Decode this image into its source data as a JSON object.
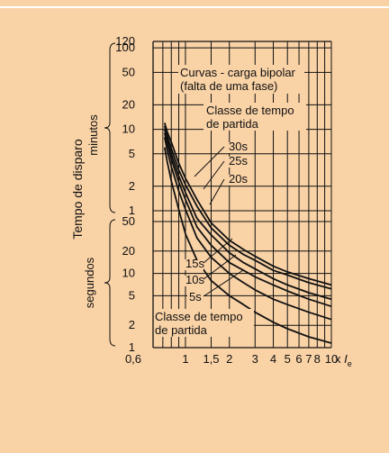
{
  "chart_data": {
    "type": "line",
    "background": "#f9d2a6",
    "line_color": "#111111",
    "grid": true,
    "x_scale": "log",
    "y_scale": "log",
    "xlim": [
      0.6,
      10
    ],
    "x_ticks": [
      0.6,
      1,
      1.5,
      2,
      3,
      4,
      5,
      6,
      7,
      8,
      10
    ],
    "x_tick_labels": [
      "0,6",
      "1",
      "1,5",
      "2",
      "3",
      "4",
      "5",
      "6",
      "7",
      "8",
      "10"
    ],
    "x_unit_prefix": "x",
    "x_unit_main": "I",
    "x_unit_sub": "e",
    "ylabel": "Tempo de disparo",
    "y_units": {
      "minutes": {
        "label": "minutos",
        "range": [
          1,
          120
        ],
        "ticks": [
          1,
          2,
          5,
          10,
          20,
          50,
          100,
          120
        ],
        "tick_labels": [
          "1",
          "2",
          "5",
          "10",
          "20",
          "50",
          "100",
          "120"
        ]
      },
      "seconds": {
        "label": "segundos",
        "range": [
          1,
          50
        ],
        "ticks": [
          1,
          2,
          5,
          10,
          20,
          50
        ],
        "tick_labels": [
          "1",
          "2",
          "5",
          "10",
          "20",
          "50"
        ]
      }
    },
    "annotations": {
      "title_lines": [
        "Curvas - carga bipolar",
        "(falta de uma fase)"
      ],
      "class_upper_lines": [
        "Classe de tempo",
        "de partida"
      ],
      "class_lower_lines": [
        "Classe de tempo",
        "de partida"
      ],
      "class_labels": [
        "30s",
        "25s",
        "20s",
        "15s",
        "10s",
        "5s"
      ]
    },
    "series": [
      {
        "name": "30s",
        "x": [
          0.72,
          0.75,
          0.8,
          0.9,
          1,
          1.2,
          1.5,
          2,
          2.5,
          3,
          4,
          5,
          7,
          10
        ],
        "y_seconds": [
          720,
          560,
          420,
          230,
          150,
          82,
          48,
          28,
          21,
          17,
          12.5,
          10.5,
          8.5,
          7
        ]
      },
      {
        "name": "25s",
        "x": [
          0.72,
          0.75,
          0.8,
          0.9,
          1,
          1.2,
          1.5,
          2,
          2.5,
          3,
          4,
          5,
          7,
          10
        ],
        "y_seconds": [
          660,
          500,
          350,
          190,
          125,
          68,
          41,
          24,
          18,
          15,
          11,
          9.5,
          7.5,
          6.2
        ]
      },
      {
        "name": "20s",
        "x": [
          0.72,
          0.75,
          0.8,
          0.9,
          1,
          1.2,
          1.5,
          2,
          2.5,
          3,
          4,
          5,
          7,
          10
        ],
        "y_seconds": [
          600,
          450,
          300,
          160,
          100,
          55,
          33,
          19,
          14,
          11.5,
          8.5,
          7,
          5.5,
          4.5
        ]
      },
      {
        "name": "15s",
        "x": [
          0.72,
          0.75,
          0.8,
          0.9,
          1,
          1.2,
          1.5,
          2,
          2.5,
          3,
          4,
          5,
          7,
          10
        ],
        "y_seconds": [
          540,
          400,
          260,
          135,
          82,
          42,
          24,
          14,
          11,
          9,
          7,
          5.8,
          4.5,
          3.6
        ]
      },
      {
        "name": "10s",
        "x": [
          0.72,
          0.75,
          0.8,
          0.9,
          1,
          1.2,
          1.5,
          2,
          2.5,
          3,
          4,
          5,
          7,
          10
        ],
        "y_seconds": [
          480,
          330,
          210,
          105,
          62,
          30,
          16.5,
          10,
          7.5,
          6,
          4.5,
          3.8,
          3,
          2.4
        ]
      },
      {
        "name": "5s",
        "x": [
          0.72,
          0.75,
          0.8,
          0.9,
          1,
          1.2,
          1.5,
          2,
          2.5,
          3,
          4,
          5,
          7,
          10
        ],
        "y_seconds": [
          360,
          240,
          140,
          62,
          34,
          15,
          8,
          5,
          3.8,
          3,
          2.2,
          1.8,
          1.4,
          1.15
        ]
      }
    ]
  }
}
